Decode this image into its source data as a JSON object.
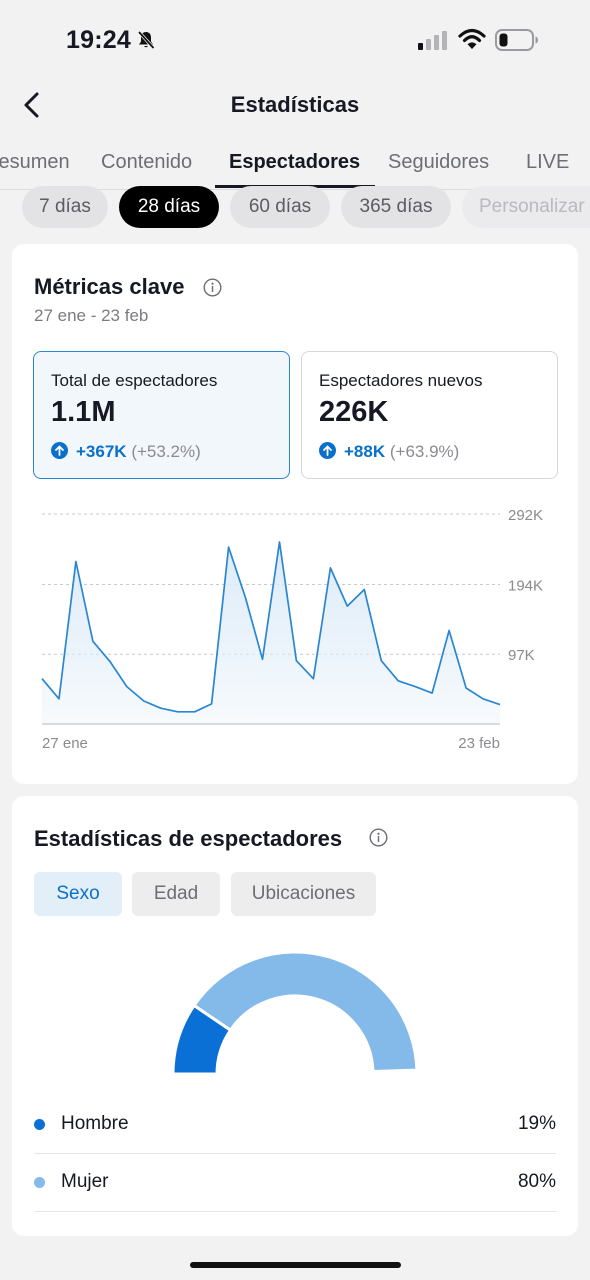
{
  "status_bar": {
    "time": "19:24"
  },
  "header": {
    "title": "Estadísticas"
  },
  "tabs": [
    {
      "label": "Resumen"
    },
    {
      "label": "Contenido"
    },
    {
      "label": "Espectadores",
      "active": true
    },
    {
      "label": "Seguidores"
    },
    {
      "label": "LIVE"
    }
  ],
  "date_filters": [
    {
      "label": "7 días"
    },
    {
      "label": "28 días",
      "active": true
    },
    {
      "label": "60 días"
    },
    {
      "label": "365 días"
    },
    {
      "label": "Personalizar"
    }
  ],
  "key_metrics": {
    "title": "Métricas clave",
    "date_range": "27 ene - 23 feb",
    "cards": [
      {
        "label": "Total de espectadores",
        "value": "1.1M",
        "change": "+367K",
        "change_pct": "(+53.2%)",
        "selected": true
      },
      {
        "label": "Espectadores nuevos",
        "value": "226K",
        "change": "+88K",
        "change_pct": "(+63.9%)",
        "selected": false
      }
    ]
  },
  "chart_data": {
    "type": "area",
    "y_ticks": [
      {
        "label": "292K",
        "value": 292000
      },
      {
        "label": "194K",
        "value": 194000
      },
      {
        "label": "97K",
        "value": 97000
      }
    ],
    "x_labels": [
      "27 ene",
      "23 feb"
    ],
    "ylim": [
      0,
      292000
    ],
    "values": [
      63000,
      35000,
      226000,
      115000,
      87000,
      52000,
      32000,
      22000,
      17000,
      17000,
      28000,
      246000,
      175000,
      90000,
      253000,
      88000,
      63000,
      217000,
      164000,
      187000,
      88000,
      60000,
      52000,
      43000,
      130000,
      50000,
      35000,
      27000
    ],
    "line_color": "#2a86d1",
    "fill_color": "#dcebf8"
  },
  "viewer_stats": {
    "title": "Estadísticas de espectadores",
    "tabs": [
      {
        "label": "Sexo",
        "active": true
      },
      {
        "label": "Edad"
      },
      {
        "label": "Ubicaciones"
      }
    ],
    "gender": [
      {
        "label": "Hombre",
        "value": "19%",
        "share": 0.19,
        "color": "#0a70d6"
      },
      {
        "label": "Mujer",
        "value": "80%",
        "share": 0.8,
        "color": "#84baea"
      }
    ]
  }
}
